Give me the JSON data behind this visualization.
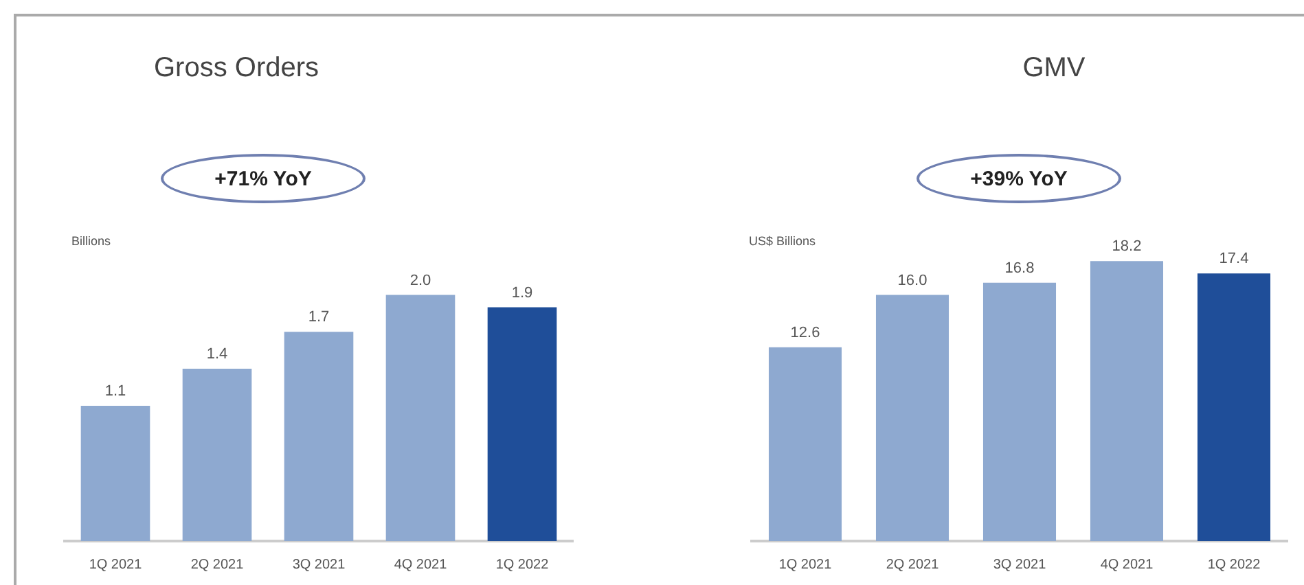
{
  "chart_data": [
    {
      "type": "bar",
      "title": "Gross Orders",
      "ylabel": "Billions",
      "annotations": [
        "+71% YoY"
      ],
      "categories": [
        "1Q 2021",
        "2Q 2021",
        "3Q 2021",
        "4Q 2021",
        "1Q 2022"
      ],
      "values": [
        1.1,
        1.4,
        1.7,
        2.0,
        1.9
      ],
      "value_labels": [
        "1.1",
        "1.4",
        "1.7",
        "2.0",
        "1.9"
      ],
      "colors": [
        "#8ea9d0",
        "#8ea9d0",
        "#8ea9d0",
        "#8ea9d0",
        "#1f4e99"
      ],
      "legend": false
    },
    {
      "type": "bar",
      "title": "GMV",
      "ylabel": "US$ Billions",
      "annotations": [
        "+39% YoY"
      ],
      "categories": [
        "1Q 2021",
        "2Q 2021",
        "3Q 2021",
        "4Q 2021",
        "1Q 2022"
      ],
      "values": [
        12.6,
        16.0,
        16.8,
        18.2,
        17.4
      ],
      "value_labels": [
        "12.6",
        "16.0",
        "16.8",
        "18.2",
        "17.4"
      ],
      "colors": [
        "#8ea9d0",
        "#8ea9d0",
        "#8ea9d0",
        "#8ea9d0",
        "#1f4e99"
      ],
      "legend": false
    }
  ]
}
